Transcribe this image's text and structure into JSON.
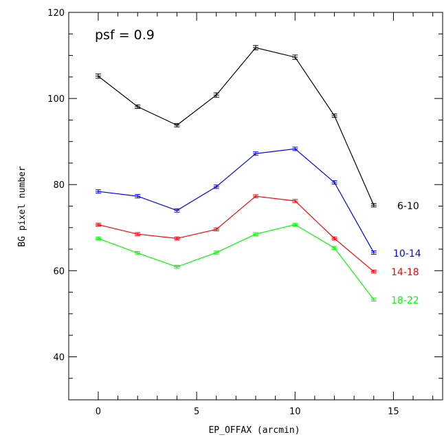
{
  "chart_data": {
    "type": "line",
    "title": "",
    "annotation": "psf = 0.9",
    "xlabel": "EP_OFFAX (arcmin)",
    "ylabel": "BG pixel number",
    "xlim": [
      -1.5,
      17.5
    ],
    "ylim": [
      30,
      120
    ],
    "xticks": [
      0,
      5,
      10,
      15
    ],
    "yticks": [
      40,
      60,
      80,
      100,
      120
    ],
    "grid": false,
    "x": [
      0,
      2,
      4,
      6,
      8,
      10,
      12,
      14
    ],
    "series": [
      {
        "name": "6-10",
        "color": "#000000",
        "values": [
          105.2,
          98.1,
          93.8,
          100.8,
          111.8,
          109.6,
          96.0,
          75.2
        ],
        "errors": [
          0.5,
          0.4,
          0.4,
          0.5,
          0.5,
          0.5,
          0.4,
          0.4
        ]
      },
      {
        "name": "10-14",
        "color": "#0000ff",
        "values": [
          78.4,
          77.3,
          74.0,
          79.5,
          87.2,
          88.3,
          80.5,
          64.2
        ],
        "errors": [
          0.4,
          0.4,
          0.4,
          0.4,
          0.4,
          0.4,
          0.4,
          0.4
        ]
      },
      {
        "name": "14-18",
        "color": "#ff0000",
        "values": [
          70.7,
          68.5,
          67.5,
          69.6,
          77.3,
          76.2,
          67.5,
          59.8
        ],
        "errors": [
          0.35,
          0.35,
          0.35,
          0.35,
          0.35,
          0.35,
          0.35,
          0.35
        ]
      },
      {
        "name": "18-22",
        "color": "#00ff00",
        "values": [
          67.5,
          64.1,
          60.9,
          64.2,
          68.5,
          70.7,
          65.3,
          53.3
        ],
        "errors": [
          0.35,
          0.35,
          0.35,
          0.35,
          0.35,
          0.35,
          0.35,
          0.35
        ]
      }
    ]
  }
}
